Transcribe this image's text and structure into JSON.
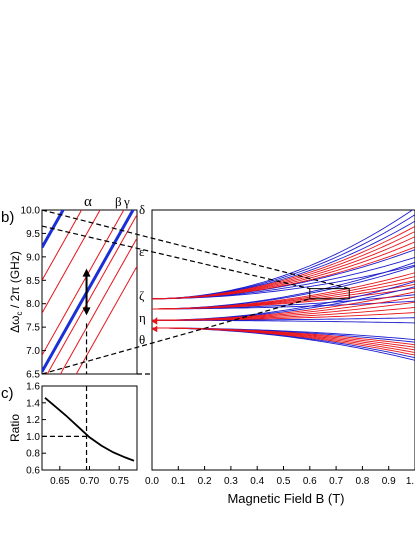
{
  "panel_labels": {
    "b": "b)",
    "c": "c)"
  },
  "xlabel_main": "Magnetic Field B (T)",
  "colors": {
    "red": "#e8141b",
    "blue": "#1c1ccf",
    "thick_blue": "#1a2fd6",
    "axis": "#000000"
  },
  "chart_data": [
    {
      "id": "panel-b-zoom",
      "type": "line",
      "title": "",
      "xlabel": "",
      "ylabel": "Δω_c / 2π (GHz)",
      "ylabel_parts": {
        "base": "Δω",
        "sub": "c",
        "rest": " / 2π (GHz)"
      },
      "xlim": [
        0.62,
        0.78
      ],
      "ylim": [
        6.5,
        10.0
      ],
      "yticks": [
        "6.5",
        "7.0",
        "7.5",
        "8.0",
        "8.5",
        "9.0",
        "9.5",
        "10.0"
      ],
      "top_labels": [
        "α",
        "β",
        "γ"
      ],
      "line_slope": 22.5,
      "red_lines_y_at_0_62": [
        10.0,
        8.5,
        7.8,
        6.9,
        6.3,
        5.8,
        5.2
      ],
      "thick_blue_lines_y_at_0_62": [
        9.2,
        6.55
      ],
      "dashed_marker_x": 0.695,
      "arrow": {
        "x": 0.695,
        "y_from": 7.75,
        "y_to": 8.75
      }
    },
    {
      "id": "panel-c-ratio",
      "type": "line",
      "title": "",
      "xlabel": "",
      "ylabel": "Ratio",
      "xlim": [
        0.62,
        0.78
      ],
      "ylim": [
        0.6,
        1.6
      ],
      "xticks": [
        "0.65",
        "0.70",
        "0.75"
      ],
      "yticks": [
        "0.6",
        "0.8",
        "1.0",
        "1.2",
        "1.4",
        "1.6"
      ],
      "series": [
        {
          "x": [
            0.625,
            0.64,
            0.66,
            0.68,
            0.7,
            0.72,
            0.74,
            0.76,
            0.775
          ],
          "y": [
            1.46,
            1.37,
            1.25,
            1.12,
            0.99,
            0.89,
            0.81,
            0.75,
            0.71
          ]
        }
      ],
      "dashed_marker": {
        "x": 0.695,
        "y": 1.0
      }
    },
    {
      "id": "panel-main",
      "type": "line",
      "title": "",
      "xlabel": "Magnetic Field B (T)",
      "ylabel": "",
      "xlim": [
        0.0,
        1.0
      ],
      "ylim": [
        -0.25,
        10.0
      ],
      "xticks": [
        "0.0",
        "0.1",
        "0.2",
        "0.3",
        "0.4",
        "0.5",
        "0.6",
        "0.7",
        "0.8",
        "0.9",
        "1."
      ],
      "greek_labels": [
        "δ",
        "ε",
        "ζ",
        "η",
        "θ"
      ],
      "groups": [
        {
          "name": "",
          "y0": 6.5,
          "k_red": [
            2.0,
            2.2,
            2.4,
            2.6,
            2.8
          ],
          "k_blue": [
            1.3,
            1.6,
            1.9,
            3.0,
            3.25,
            3.5
          ]
        },
        {
          "name": "",
          "y0": 6.1,
          "k_red": [
            0.8,
            0.95,
            1.1,
            1.25,
            1.4
          ],
          "k_blue": [
            0.3,
            0.55,
            1.65,
            1.8
          ]
        },
        {
          "name": "",
          "y0": 5.65,
          "k_red": [
            0.3,
            0.5,
            0.7,
            0.9,
            1.1
          ],
          "k_blue": [
            -0.1,
            0.1,
            1.3,
            1.5
          ]
        },
        {
          "name": "",
          "y0": 5.35,
          "k_red": [
            -1.05,
            -0.95,
            -0.85,
            -0.75,
            -0.65
          ],
          "k_blue": [
            -1.25,
            -1.15,
            -0.55,
            -0.45
          ]
        }
      ],
      "rectangle": {
        "x": [
          0.6,
          0.75
        ],
        "y": [
          6.5,
          6.9
        ]
      },
      "dashed_lines": [
        {
          "from": "panel-b-top-left",
          "to": [
            0.75,
            6.9
          ]
        },
        {
          "from": "panel-b-mid-left",
          "to": [
            0.6,
            6.9
          ]
        },
        {
          "from": "panel-b-bottom-left",
          "to": [
            0.6,
            6.5
          ]
        }
      ]
    }
  ]
}
